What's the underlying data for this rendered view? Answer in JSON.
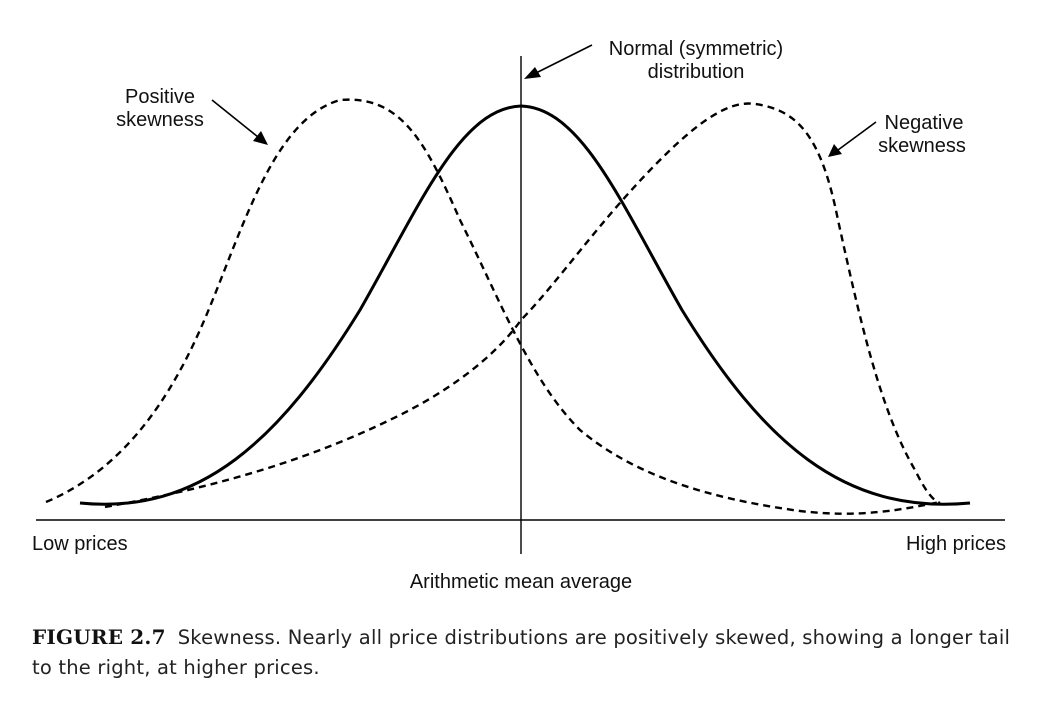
{
  "labels": {
    "normal_line1": "Normal (symmetric)",
    "normal_line2": "distribution",
    "positive_line1": "Positive",
    "positive_line2": "skewness",
    "negative_line1": "Negative",
    "negative_line2": "skewness",
    "low_prices": "Low prices",
    "high_prices": "High prices",
    "mean": "Arithmetic mean average"
  },
  "caption": {
    "label": "FIGURE 2.7",
    "text": "Skewness. Nearly all price distributions are positively skewed, showing a longer tail to the right, at higher prices."
  }
}
